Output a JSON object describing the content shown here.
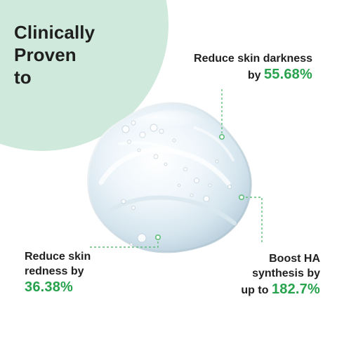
{
  "headline": {
    "lines": [
      "Clinically",
      "Proven",
      "to"
    ]
  },
  "callouts": {
    "top_right": {
      "line1": "Reduce skin darkness",
      "line2_prefix": "by ",
      "metric": "55.68%"
    },
    "bottom_left": {
      "line1": "Reduce skin",
      "line2": "redness by",
      "metric": "36.38%"
    },
    "bottom_right": {
      "line1": "Boost HA",
      "line2": "synthesis by",
      "line3_prefix": "up to ",
      "metric": "182.7%"
    }
  },
  "colors": {
    "accent_green": "#27a24d",
    "mint_background": "#cfe9dc",
    "text_dark": "#1f1f1f"
  }
}
